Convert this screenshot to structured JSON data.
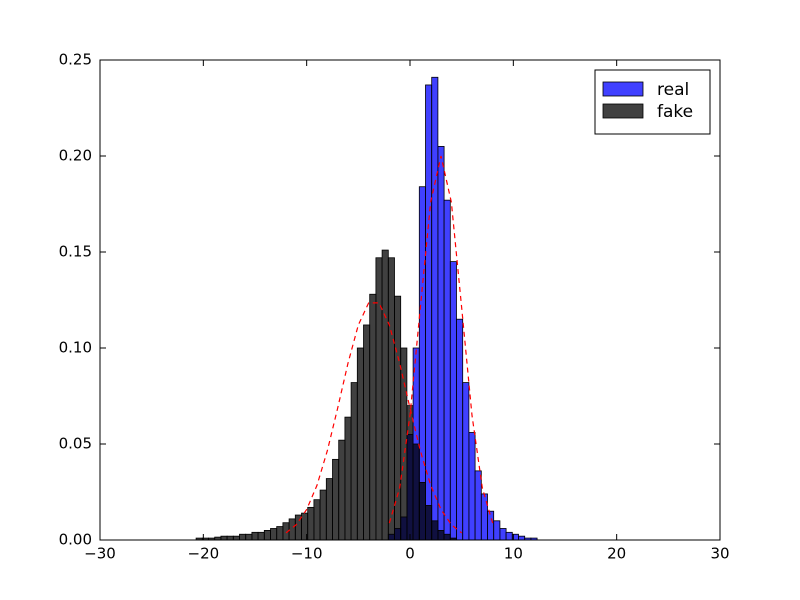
{
  "chart_data": {
    "type": "histogram",
    "xlim": [
      -30,
      30
    ],
    "xticks": [
      {
        "value": -30,
        "label": "−30"
      },
      {
        "value": -20,
        "label": "−20"
      },
      {
        "value": -10,
        "label": "−10"
      },
      0,
      10,
      20,
      30
    ],
    "ylim": [
      0,
      0.25
    ],
    "yticks": [
      {
        "value": 0,
        "label": "0.00"
      },
      {
        "value": 0.05,
        "label": "0.05"
      },
      {
        "value": 0.1,
        "label": "0.10"
      },
      {
        "value": 0.15,
        "label": "0.15"
      },
      {
        "value": 0.2,
        "label": "0.20"
      },
      {
        "value": 0.25,
        "label": "0.25"
      }
    ],
    "alpha": 0.75,
    "legend": "upper right",
    "series": [
      {
        "name": "real",
        "color": "#0000ff",
        "bins": [
          -2.1,
          -1.5,
          -0.9,
          -0.3,
          0.3,
          0.9,
          1.5,
          2.1,
          2.7,
          3.3,
          3.9,
          4.5,
          5.1,
          5.7,
          6.3,
          6.9,
          7.5,
          8.1,
          8.7,
          9.3,
          9.9,
          10.5,
          11.1,
          11.7,
          12.3
        ],
        "values": [
          0.003,
          0.006,
          0.012,
          0.055,
          0.1,
          0.184,
          0.237,
          0.241,
          0.205,
          0.177,
          0.145,
          0.115,
          0.082,
          0.056,
          0.036,
          0.024,
          0.015,
          0.01,
          0.006,
          0.004,
          0.003,
          0.002,
          0.001,
          0.001
        ]
      },
      {
        "name": "fake",
        "color": "#000000",
        "bins": [
          -20.7,
          -20.1,
          -19.5,
          -18.9,
          -18.3,
          -17.7,
          -17.1,
          -16.5,
          -15.9,
          -15.3,
          -14.7,
          -14.1,
          -13.5,
          -12.9,
          -12.3,
          -11.7,
          -11.1,
          -10.5,
          -9.9,
          -9.3,
          -8.7,
          -8.1,
          -7.5,
          -6.9,
          -6.3,
          -5.7,
          -5.1,
          -4.5,
          -3.9,
          -3.3,
          -2.7,
          -2.1,
          -1.5,
          -0.9,
          -0.3,
          0.3,
          0.9,
          1.5,
          2.1,
          2.7,
          3.3,
          3.9,
          4.5
        ],
        "values": [
          0.001,
          0.001,
          0.001,
          0.0015,
          0.002,
          0.002,
          0.002,
          0.003,
          0.003,
          0.004,
          0.004,
          0.005,
          0.006,
          0.007,
          0.009,
          0.011,
          0.013,
          0.014,
          0.017,
          0.021,
          0.026,
          0.032,
          0.042,
          0.052,
          0.064,
          0.082,
          0.1,
          0.112,
          0.128,
          0.147,
          0.151,
          0.147,
          0.127,
          0.1,
          0.07,
          0.05,
          0.03,
          0.018,
          0.01,
          0.005,
          0.003,
          0.001
        ]
      }
    ],
    "curves": [
      {
        "color": "#ff0000",
        "x": [
          -12,
          -11,
          -10,
          -9,
          -8,
          -7,
          -6,
          -5,
          -4,
          -3,
          -2,
          -1,
          0,
          1,
          2,
          3,
          4,
          5
        ],
        "values": [
          0.0037,
          0.008,
          0.0159,
          0.0285,
          0.0465,
          0.0687,
          0.0921,
          0.112,
          0.1235,
          0.1235,
          0.112,
          0.0921,
          0.0687,
          0.0465,
          0.0285,
          0.0159,
          0.008,
          0.0037
        ]
      },
      {
        "color": "#ff0000",
        "x": [
          -2,
          -1,
          0,
          1,
          2,
          3,
          4,
          5,
          6,
          7,
          8
        ],
        "values": [
          0.0088,
          0.0271,
          0.0649,
          0.121,
          0.176,
          0.2,
          0.176,
          0.121,
          0.0649,
          0.0271,
          0.0088
        ]
      }
    ]
  }
}
